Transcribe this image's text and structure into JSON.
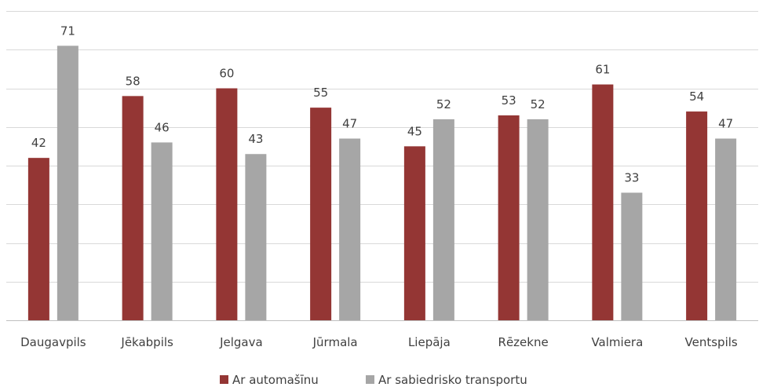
{
  "chart_data": {
    "type": "bar",
    "title": "",
    "xlabel": "",
    "ylabel": "",
    "ylim": [
      0,
      80
    ],
    "grid": true,
    "legend_position": "bottom",
    "categories": [
      "Daugavpils",
      "Jēkabpils",
      "Jelgava",
      "Jūrmala",
      "Liepāja",
      "Rēzekne",
      "Valmiera",
      "Ventspils"
    ],
    "series": [
      {
        "name": "Ar automašīnu",
        "color": "#943634",
        "values": [
          42,
          58,
          60,
          55,
          45,
          53,
          61,
          54
        ]
      },
      {
        "name": "Ar sabiedrisko transportu",
        "color": "#a6a6a6",
        "values": [
          71,
          46,
          43,
          47,
          52,
          52,
          33,
          47
        ]
      }
    ]
  }
}
